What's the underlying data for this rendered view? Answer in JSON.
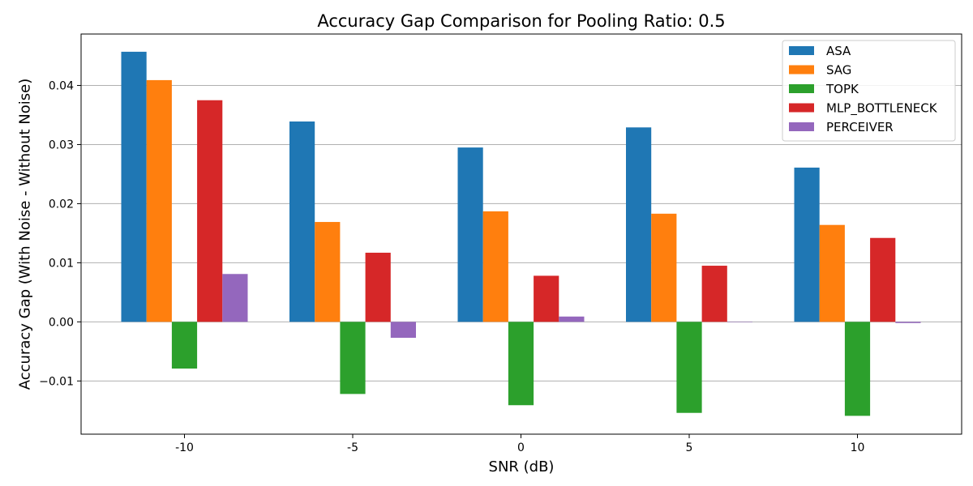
{
  "chart_data": {
    "type": "bar",
    "title": "Accuracy Gap Comparison for Pooling Ratio: 0.5",
    "xlabel": "SNR (dB)",
    "ylabel": "Accuracy Gap (With Noise - Without Noise)",
    "categories": [
      "-10",
      "-5",
      "0",
      "5",
      "10"
    ],
    "ylim": [
      -0.019,
      0.0487
    ],
    "yticks": [
      -0.01,
      0.0,
      0.01,
      0.02,
      0.03,
      0.04
    ],
    "ytick_labels": [
      "−0.01",
      "0.00",
      "0.01",
      "0.02",
      "0.03",
      "0.04"
    ],
    "grid": "y-major",
    "legend_position": "top-right",
    "series": [
      {
        "name": "ASA",
        "color": "#1f77b4",
        "values": [
          0.0457,
          0.0339,
          0.0295,
          0.0329,
          0.0261
        ]
      },
      {
        "name": "SAG",
        "color": "#ff7f0e",
        "values": [
          0.0409,
          0.0169,
          0.0187,
          0.0183,
          0.0164
        ]
      },
      {
        "name": "TOPK",
        "color": "#2ca02c",
        "values": [
          -0.0079,
          -0.0122,
          -0.0141,
          -0.0154,
          -0.0159
        ]
      },
      {
        "name": "MLP_BOTTLENECK",
        "color": "#d62728",
        "values": [
          0.0375,
          0.0117,
          0.0078,
          0.0095,
          0.0142
        ]
      },
      {
        "name": "PERCEIVER",
        "color": "#9467bd",
        "values": [
          0.0081,
          -0.0027,
          0.0009,
          0.0,
          -0.0002
        ]
      }
    ]
  }
}
